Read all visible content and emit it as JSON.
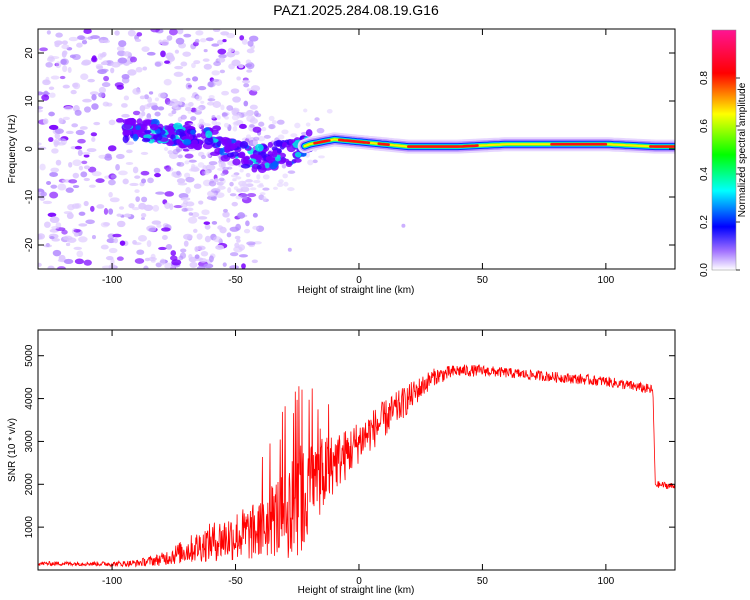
{
  "title": "PAZ1.2025.284.08.19.G16",
  "chart_data": [
    {
      "type": "heatmap",
      "xlabel": "Height of straight line (km)",
      "ylabel": "Frequency (Hz)",
      "xlim": [
        -130,
        128
      ],
      "ylim": [
        -25,
        25
      ],
      "xticks": [
        -100,
        -50,
        0,
        50,
        100
      ],
      "yticks": [
        -20,
        -10,
        0,
        10,
        20
      ],
      "colorbar": {
        "label": "Normalized spectral amplitude",
        "range": [
          0.0,
          1.0
        ],
        "ticks": [
          "0.0",
          "0.2",
          "0.4",
          "0.6",
          "0.8"
        ],
        "stops": [
          "#ffffff",
          "#7a00ff",
          "#0000ff",
          "#00ffff",
          "#00ff00",
          "#ffff00",
          "#ff0000",
          "#ff1493"
        ]
      },
      "ridge": {
        "x": [
          -90,
          -80,
          -70,
          -60,
          -50,
          -40,
          -30,
          -20,
          -10,
          0,
          10,
          20,
          40,
          60,
          80,
          100,
          120
        ],
        "freq": [
          4,
          3.5,
          2.5,
          2,
          -1,
          -2,
          -1,
          1,
          2,
          1.5,
          1,
          0.5,
          0.5,
          1,
          1,
          1,
          0.5
        ]
      }
    },
    {
      "type": "line",
      "xlabel": "Height of straight line (km)",
      "ylabel": "SNR (10 * v/v)",
      "xlim": [
        -130,
        128
      ],
      "ylim": [
        0,
        5600
      ],
      "xticks": [
        -100,
        -50,
        0,
        50,
        100
      ],
      "yticks": [
        1000,
        2000,
        3000,
        4000,
        5000
      ],
      "series": [
        {
          "name": "SNR",
          "color": "#ff0000",
          "x": [
            -130,
            -110,
            -100,
            -90,
            -80,
            -70,
            -60,
            -50,
            -40,
            -35,
            -30,
            -25,
            -22,
            -20,
            -15,
            -10,
            -5,
            0,
            10,
            20,
            30,
            40,
            50,
            60,
            70,
            80,
            90,
            100,
            110,
            119,
            120,
            128
          ],
          "y": [
            150,
            150,
            140,
            160,
            250,
            450,
            650,
            800,
            900,
            1200,
            1300,
            1700,
            1500,
            2100,
            2200,
            2500,
            2700,
            3000,
            3500,
            4000,
            4500,
            4650,
            4650,
            4600,
            4550,
            4500,
            4450,
            4400,
            4300,
            4200,
            2000,
            1950
          ],
          "noise": [
            50,
            50,
            60,
            80,
            150,
            300,
            450,
            600,
            700,
            900,
            1100,
            1400,
            1300,
            1000,
            900,
            700,
            600,
            500,
            450,
            350,
            200,
            150,
            130,
            120,
            120,
            120,
            120,
            120,
            120,
            120,
            80,
            80
          ]
        }
      ]
    }
  ]
}
